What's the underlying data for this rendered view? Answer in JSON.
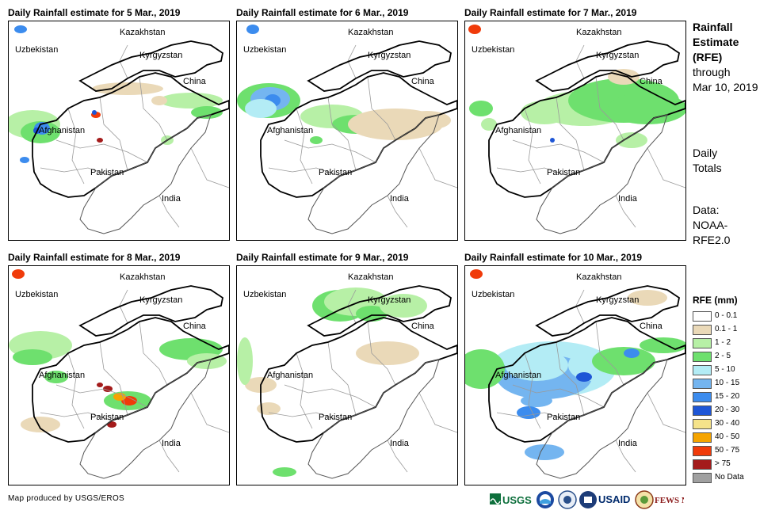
{
  "panels": [
    {
      "title": "Daily Rainfall estimate for 5 Mar., 2019"
    },
    {
      "title": "Daily Rainfall estimate for 6 Mar., 2019"
    },
    {
      "title": "Daily Rainfall estimate for 7 Mar., 2019"
    },
    {
      "title": "Daily Rainfall estimate for 8 Mar., 2019"
    },
    {
      "title": "Daily Rainfall estimate for 9 Mar., 2019"
    },
    {
      "title": "Daily Rainfall estimate for 10 Mar., 2019"
    }
  ],
  "labels": {
    "kazakhstan": "Kazakhstan",
    "uzbekistan": "Uzbekistan",
    "kyrgyzstan": "Kyrgyzstan",
    "china": "China",
    "afghanistan": "Afghanistan",
    "pakistan": "Pakistan",
    "india": "India"
  },
  "side": {
    "line1": "Rainfall",
    "line2": "Estimate",
    "line3": "(RFE)",
    "line4": "through",
    "line5": "Mar 10, 2019",
    "daily1": "Daily",
    "daily2": "Totals",
    "data1": "Data:",
    "data2": "NOAA-",
    "data3": "RFE2.0"
  },
  "legend": {
    "title": "RFE (mm)",
    "items": [
      {
        "label": "0 - 0.1",
        "color": "#ffffff"
      },
      {
        "label": "0.1 - 1",
        "color": "#ead9b8"
      },
      {
        "label": "1 - 2",
        "color": "#b7f0a6"
      },
      {
        "label": "2 - 5",
        "color": "#6ee06e"
      },
      {
        "label": "5 - 10",
        "color": "#b3ecf5"
      },
      {
        "label": "10 - 15",
        "color": "#74b5f0"
      },
      {
        "label": "15 - 20",
        "color": "#3c8cee"
      },
      {
        "label": "20 - 30",
        "color": "#1e56d6"
      },
      {
        "label": "30 - 40",
        "color": "#f5e38a"
      },
      {
        "label": "40 - 50",
        "color": "#f5a400"
      },
      {
        "label": "50 - 75",
        "color": "#f03b0a"
      },
      {
        "label": "> 75",
        "color": "#a41b1b"
      },
      {
        "label": "No Data",
        "color": "#a0a0a0"
      }
    ]
  },
  "footer": "Map produced by USGS/EROS",
  "logos": {
    "usgs": "USGS",
    "usaid": "USAID",
    "fewsnet": "FEWS NET"
  }
}
